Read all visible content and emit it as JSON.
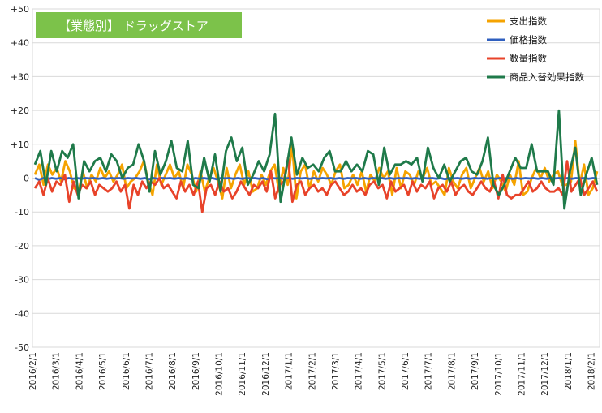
{
  "chart_data": {
    "type": "line",
    "title": "【業態別】 ドラッグストア",
    "ylim": [
      -50,
      50
    ],
    "yticks": [
      50,
      40,
      30,
      20,
      10,
      0,
      -10,
      -20,
      -30,
      -40,
      -50
    ],
    "ytick_labels": [
      "+50",
      "+40",
      "+30",
      "+20",
      "+10",
      "0",
      "-10",
      "-20",
      "-30",
      "-40",
      "-50"
    ],
    "grid": true,
    "legend_position": "top-right",
    "x_labels": [
      "2016/2/1",
      "2016/3/1",
      "2016/4/1",
      "2016/5/1",
      "2016/6/1",
      "2016/7/1",
      "2016/8/1",
      "2016/9/1",
      "2016/10/1",
      "2016/11/1",
      "2016/12/1",
      "2017/1/1",
      "2017/2/1",
      "2017/3/1",
      "2017/4/1",
      "2017/5/1",
      "2017/6/1",
      "2017/7/1",
      "2017/8/1",
      "2017/9/1",
      "2017/10/1",
      "2017/11/1",
      "2017/12/1",
      "2018/1/1",
      "2018/2/1"
    ],
    "colors": {
      "title_bg": "#7cc24a",
      "grid": "#d9d9d9",
      "series_1": "#f5a300",
      "series_2": "#2f5fbf",
      "series_3": "#e8432a",
      "series_4": "#1f7a4a"
    },
    "series": [
      {
        "name": "支出指数",
        "values": [
          1,
          4,
          -2,
          4,
          1,
          3,
          -1,
          5,
          2,
          -3,
          -4,
          2,
          -3,
          1,
          -1,
          3,
          0,
          2,
          -1,
          1,
          4,
          -3,
          -1,
          0,
          2,
          5,
          -1,
          -5,
          4,
          -2,
          1,
          4,
          0,
          2,
          -3,
          4,
          1,
          -4,
          2,
          -4,
          0,
          3,
          -1,
          -6,
          3,
          -3,
          1,
          4,
          -2,
          2,
          -4,
          -3,
          1,
          -2,
          2,
          4,
          -4,
          3,
          -2,
          10,
          -6,
          2,
          4,
          -3,
          2,
          -1,
          3,
          1,
          -2,
          2,
          4,
          -3,
          -2,
          1,
          -2,
          2,
          -4,
          1,
          -1,
          3,
          0,
          2,
          -5,
          3,
          -3,
          2,
          1,
          -2,
          2,
          0,
          3,
          -2,
          -1,
          -3,
          -5,
          3,
          -1,
          -3,
          1,
          3,
          -3,
          0,
          3,
          -1,
          2,
          -3,
          1,
          -1,
          -4,
          1,
          -2,
          5,
          -5,
          -4,
          0,
          3,
          0,
          3,
          -1,
          1,
          2,
          -2,
          -2,
          -1,
          11,
          -2,
          4,
          -5,
          -3,
          2
        ]
      },
      {
        "name": "価格指数",
        "values": [
          0,
          -0.5,
          0,
          -0.3,
          0,
          -0.2,
          0,
          -0.3,
          0,
          -0.2,
          0,
          -0.2,
          0,
          -0.1,
          0,
          -0.2,
          0,
          -0.2,
          0,
          -0.1,
          0,
          -0.2,
          0,
          -0.1,
          0,
          -0.2,
          0,
          -0.3,
          0,
          -0.2,
          0,
          -0.1,
          0,
          -0.2,
          0,
          -0.2,
          0,
          -0.3,
          0,
          -0.2,
          0,
          -0.2,
          0,
          -0.3,
          0,
          -0.1,
          0,
          -0.2,
          0,
          -0.2,
          0,
          -0.1,
          0,
          -0.2,
          0,
          -0.3,
          0,
          -0.1,
          0,
          -0.2,
          0,
          -0.2,
          0,
          -0.1,
          0,
          -0.2,
          0,
          -0.2,
          0,
          -0.1,
          0,
          -0.2,
          0,
          -0.2,
          0,
          -0.1,
          0,
          -0.2,
          0,
          -0.2,
          0,
          -0.1,
          0,
          -0.2,
          0,
          -0.2,
          0,
          -0.1,
          0,
          -0.2,
          0,
          -0.2,
          0,
          -0.1,
          0,
          -0.2,
          0,
          -0.3,
          0,
          -0.1,
          0,
          -0.2,
          0,
          -0.2,
          0,
          -0.1,
          0,
          -0.2,
          0,
          -0.2,
          0,
          -0.1,
          0,
          -0.2,
          0,
          -0.2,
          0,
          -0.1,
          0,
          -0.2,
          0,
          -0.2,
          0,
          -0.1,
          0,
          -0.2,
          0,
          -0.2,
          0,
          -0.1,
          0,
          -0.2,
          0,
          -0.1
        ]
      },
      {
        "name": "数量指数",
        "values": [
          -3,
          -1,
          -5,
          0,
          -4,
          -1,
          -2,
          1,
          -7,
          -1,
          -5,
          -2,
          -3,
          -1,
          -5,
          -2,
          -3,
          -4,
          -3,
          -1,
          -4,
          -2,
          -9,
          -2,
          -5,
          -1,
          -3,
          -1,
          -2,
          0,
          -3,
          -2,
          -4,
          -6,
          -1,
          -4,
          -2,
          -5,
          -1,
          -10,
          -3,
          -2,
          -5,
          -1,
          -4,
          -3,
          -6,
          -4,
          -1,
          -3,
          -5,
          -2,
          -3,
          -1,
          -4,
          2,
          -6,
          -2,
          -1,
          6,
          -7,
          -2,
          -1,
          -5,
          -3,
          -2,
          -4,
          -3,
          -5,
          -2,
          -1,
          -3,
          -5,
          -4,
          -2,
          -4,
          -3,
          -5,
          -2,
          -1,
          -3,
          -2,
          -6,
          -1,
          -4,
          -3,
          -2,
          -5,
          -1,
          -4,
          -2,
          -3,
          -1,
          -6,
          -3,
          -2,
          -4,
          -1,
          -5,
          -3,
          -2,
          -4,
          -5,
          -3,
          -1,
          -3,
          -4,
          -1,
          -6,
          1,
          -5,
          -6,
          -5,
          -5,
          -3,
          -1,
          -4,
          -3,
          -1,
          -3,
          -4,
          -4,
          -3,
          -5,
          5,
          -4,
          -2,
          0,
          -5,
          -3,
          -1,
          -4
        ]
      },
      {
        "name": "商品入替効果指数",
        "values": [
          4,
          8,
          -2,
          8,
          2,
          8,
          6,
          10,
          -6,
          5,
          2,
          5,
          6,
          2,
          7,
          5,
          0,
          3,
          4,
          10,
          5,
          -4,
          8,
          1,
          5,
          11,
          3,
          2,
          11,
          -2,
          -3,
          6,
          -1,
          7,
          -4,
          8,
          12,
          5,
          9,
          -2,
          1,
          5,
          2,
          7,
          19,
          -7,
          2,
          12,
          1,
          6,
          3,
          4,
          2,
          6,
          8,
          2,
          2,
          5,
          2,
          4,
          2,
          8,
          7,
          -2,
          9,
          1,
          4,
          4,
          5,
          4,
          6,
          -1,
          9,
          3,
          0,
          4,
          -1,
          2,
          5,
          6,
          2,
          1,
          5,
          12,
          -2,
          -5,
          -2,
          2,
          6,
          3,
          3,
          10,
          2,
          2,
          2,
          -2,
          20,
          -9,
          2,
          9,
          -5,
          1,
          6,
          -2
        ]
      }
    ]
  }
}
